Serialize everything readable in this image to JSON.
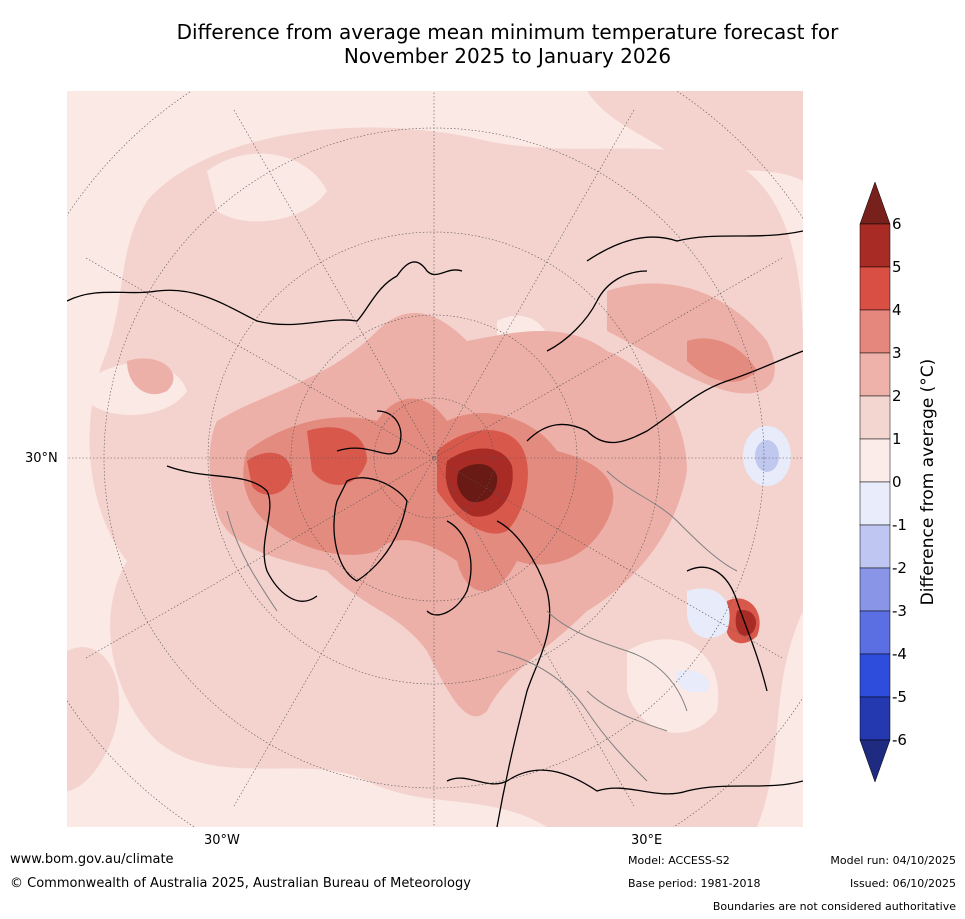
{
  "title": {
    "line1": "Difference from average mean minimum temperature forecast for",
    "line2": "November 2025 to January 2026"
  },
  "map": {
    "projection": "north-polar-stereographic",
    "lat_labels": [
      "30°N"
    ],
    "lon_labels": [
      "30°W",
      "30°E"
    ],
    "colors": {
      "ocean_background": "#fbe9e6",
      "band_1_2": "#f4d3ce",
      "band_2_3": "#edb0a8",
      "band_3_4": "#e48b80",
      "band_4_5": "#d9584c",
      "band_5_6": "#a82b25",
      "band_gt6": "#6a1a15",
      "cold_0_-1": "#e8ebf9",
      "cold_-1_-2": "#c0c8f0",
      "coastline": "#000000",
      "borders": "#808080",
      "gridlines": "#555555"
    }
  },
  "colorbar": {
    "label": "Difference from average (°C)",
    "ticks": [
      "6",
      "5",
      "4",
      "3",
      "2",
      "1",
      "0",
      "-1",
      "-2",
      "-3",
      "-4",
      "-5",
      "-6"
    ],
    "bins": [
      {
        "range": [
          6,
          99
        ],
        "color": "#78201b"
      },
      {
        "range": [
          5,
          6
        ],
        "color": "#a82b25"
      },
      {
        "range": [
          4,
          5
        ],
        "color": "#d94f43"
      },
      {
        "range": [
          3,
          4
        ],
        "color": "#e6877d"
      },
      {
        "range": [
          2,
          3
        ],
        "color": "#eeb2aa"
      },
      {
        "range": [
          1,
          2
        ],
        "color": "#f4d6d1"
      },
      {
        "range": [
          0,
          1
        ],
        "color": "#fbecea"
      },
      {
        "range": [
          -1,
          0
        ],
        "color": "#e9ecfb"
      },
      {
        "range": [
          -2,
          -1
        ],
        "color": "#bfc6f1"
      },
      {
        "range": [
          -3,
          -2
        ],
        "color": "#8996e8"
      },
      {
        "range": [
          -4,
          -3
        ],
        "color": "#5b6fe3"
      },
      {
        "range": [
          -5,
          -4
        ],
        "color": "#2f4ddd"
      },
      {
        "range": [
          -6,
          -5
        ],
        "color": "#2439b0"
      },
      {
        "range": [
          -99,
          -6
        ],
        "color": "#1e2b80"
      }
    ]
  },
  "footer": {
    "website": "www.bom.gov.au/climate",
    "copyright": "© Commonwealth of Australia 2025, Australian Bureau of Meteorology",
    "model": "Model: ACCESS-S2",
    "base_period": "Base period: 1981-2018",
    "model_run": "Model run: 04/10/2025",
    "issued": "Issued: 06/10/2025",
    "disclaimer": "Boundaries are not considered authoritative"
  }
}
